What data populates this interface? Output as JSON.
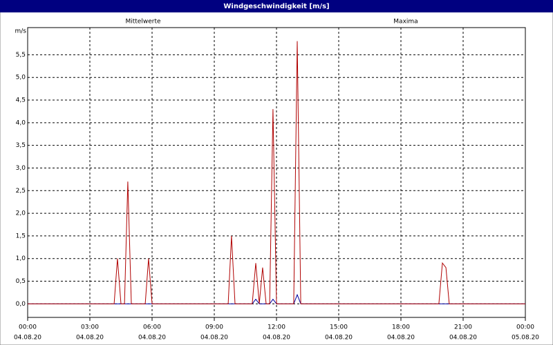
{
  "chart_data": {
    "type": "line",
    "title": "Windgeschwindigkeit [m/s]",
    "y_label": "m/s",
    "x": [
      0,
      4.17,
      4.33,
      4.5,
      4.67,
      4.83,
      5.0,
      5.67,
      5.83,
      6.0,
      9.67,
      9.83,
      10.0,
      10.83,
      11.0,
      11.17,
      11.33,
      11.5,
      11.67,
      11.83,
      12.0,
      12.83,
      13.0,
      13.17,
      19.83,
      20.0,
      20.17,
      20.33,
      24
    ],
    "series": [
      {
        "name": "Mittelwerte",
        "color": "#0000a0",
        "values": [
          0,
          0,
          0,
          0,
          0,
          0,
          0,
          0,
          0,
          0,
          0,
          0,
          0,
          0,
          0.1,
          0,
          0,
          0,
          0,
          0.1,
          0,
          0,
          0.2,
          0,
          0,
          0,
          0,
          0,
          0
        ]
      },
      {
        "name": "Maxima",
        "color": "#b00000",
        "values": [
          0,
          0,
          1.0,
          0,
          0,
          2.7,
          0,
          0,
          1.0,
          0,
          0,
          1.5,
          0,
          0,
          0.9,
          0,
          0.8,
          0,
          0,
          4.3,
          0,
          0,
          5.8,
          0,
          0,
          0.9,
          0.8,
          0,
          0
        ]
      }
    ],
    "xlim": [
      0,
      24
    ],
    "xticks": [
      {
        "value": 0,
        "label": "00:00",
        "date": "04.08.20"
      },
      {
        "value": 3,
        "label": "03:00",
        "date": "04.08.20"
      },
      {
        "value": 6,
        "label": "06:00",
        "date": "04.08.20"
      },
      {
        "value": 9,
        "label": "09:00",
        "date": "04.08.20"
      },
      {
        "value": 12,
        "label": "12:00",
        "date": "04.08.20"
      },
      {
        "value": 15,
        "label": "15:00",
        "date": "04.08.20"
      },
      {
        "value": 18,
        "label": "18:00",
        "date": "04.08.20"
      },
      {
        "value": 21,
        "label": "21:00",
        "date": "04.08.20"
      },
      {
        "value": 24,
        "label": "00:00",
        "date": "05.08.20"
      }
    ],
    "ylim": [
      -0.3,
      6.1
    ],
    "yticks": [
      {
        "value": 0,
        "label": "0,0"
      },
      {
        "value": 0.5,
        "label": "0,5"
      },
      {
        "value": 1,
        "label": "1,0"
      },
      {
        "value": 1.5,
        "label": "1,5"
      },
      {
        "value": 2,
        "label": "2,0"
      },
      {
        "value": 2.5,
        "label": "2,5"
      },
      {
        "value": 3,
        "label": "3,0"
      },
      {
        "value": 3.5,
        "label": "3,5"
      },
      {
        "value": 4,
        "label": "4,0"
      },
      {
        "value": 4.5,
        "label": "4,5"
      },
      {
        "value": 5,
        "label": "5,0"
      },
      {
        "value": 5.5,
        "label": "5,5"
      }
    ],
    "grid": true
  }
}
